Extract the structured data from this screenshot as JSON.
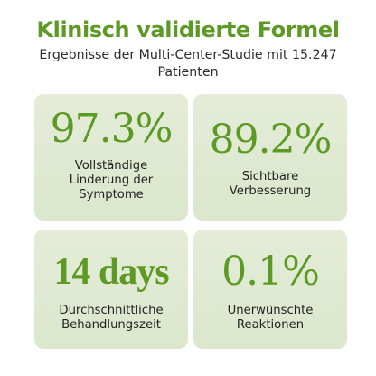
{
  "colors": {
    "accent_green": "#5c9a25",
    "card_bg": "#dfe9d1",
    "text_dark": "#222222"
  },
  "header": {
    "title": "Klinisch validierte Formel",
    "subtitle": "Ergebnisse der Multi-Center-Studie mit 15.247 Patienten"
  },
  "stats": [
    {
      "value": "97.3%",
      "label_line1": "Vollständige",
      "label_line2": "Linderung der",
      "label_line3": "Symptome"
    },
    {
      "value": "89.2%",
      "label_line1": "Sichtbare",
      "label_line2": "Verbesserung",
      "label_line3": ""
    },
    {
      "value": "14 days",
      "label_line1": "Durchschnittliche",
      "label_line2": "Behandlungszeit",
      "label_line3": ""
    },
    {
      "value": "0.1%",
      "label_line1": "Unerwünschte",
      "label_line2": "Reaktionen",
      "label_line3": ""
    }
  ]
}
